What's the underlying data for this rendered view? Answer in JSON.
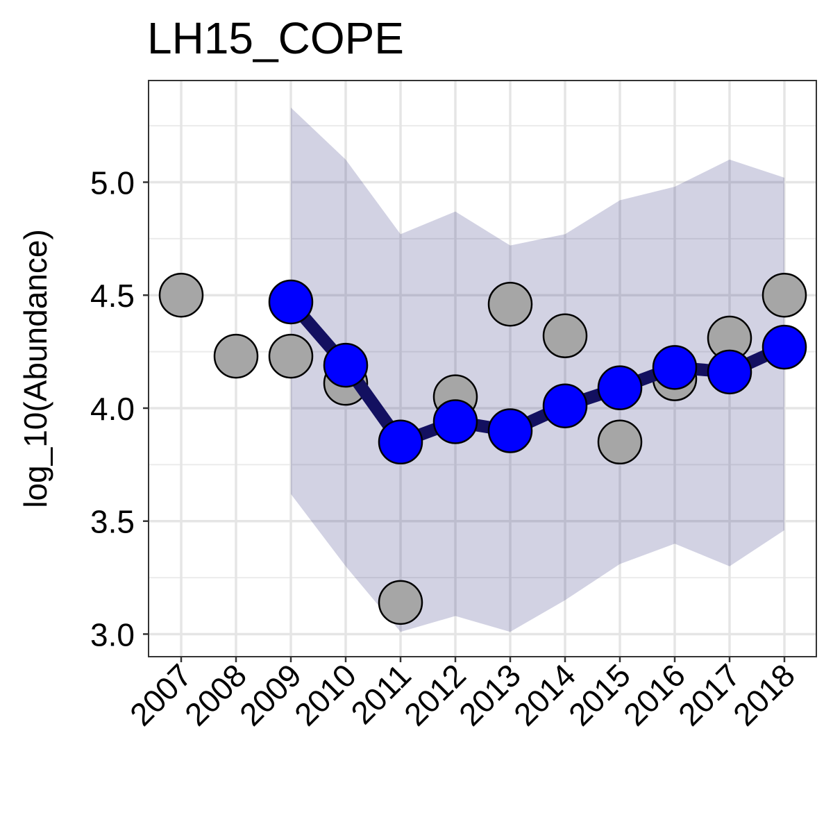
{
  "chart_data": {
    "type": "line",
    "title": "LH15_COPE",
    "xlabel": "",
    "ylabel": "log_10(Abundance)",
    "categories": [
      "2007",
      "2008",
      "2009",
      "2010",
      "2011",
      "2012",
      "2013",
      "2014",
      "2015",
      "2016",
      "2017",
      "2018"
    ],
    "ylim": [
      2.9,
      5.45
    ],
    "yticks": [
      "3.0",
      "3.5",
      "4.0",
      "4.5",
      "5.0"
    ],
    "grid": true,
    "legend": "none",
    "series": [
      {
        "kind": "observed",
        "x": [
          "2007",
          "2008",
          "2009",
          "2010",
          "2011",
          "2012",
          "2013",
          "2014",
          "2015",
          "2016",
          "2017",
          "2018"
        ],
        "values": [
          4.5,
          4.23,
          4.23,
          4.11,
          3.14,
          4.05,
          4.46,
          4.32,
          3.85,
          4.13,
          4.31,
          4.5
        ],
        "color": "#a6a6a6"
      },
      {
        "kind": "fitted",
        "x": [
          "2009",
          "2010",
          "2011",
          "2012",
          "2013",
          "2014",
          "2015",
          "2016",
          "2017",
          "2018"
        ],
        "values": [
          4.47,
          4.19,
          3.85,
          3.94,
          3.9,
          4.01,
          4.09,
          4.18,
          4.16,
          4.27
        ],
        "line_color": "#131060",
        "point_color": "#0000ff"
      }
    ],
    "band": {
      "x": [
        "2009",
        "2010",
        "2011",
        "2012",
        "2013",
        "2014",
        "2015",
        "2016",
        "2017",
        "2018"
      ],
      "upper": [
        5.33,
        5.1,
        4.77,
        4.87,
        4.72,
        4.77,
        4.92,
        4.98,
        5.1,
        5.02
      ],
      "lower": [
        3.62,
        3.3,
        3.01,
        3.08,
        3.01,
        3.15,
        3.31,
        3.4,
        3.3,
        3.46
      ],
      "color": "#1d1f75",
      "opacity": 0.2
    }
  }
}
